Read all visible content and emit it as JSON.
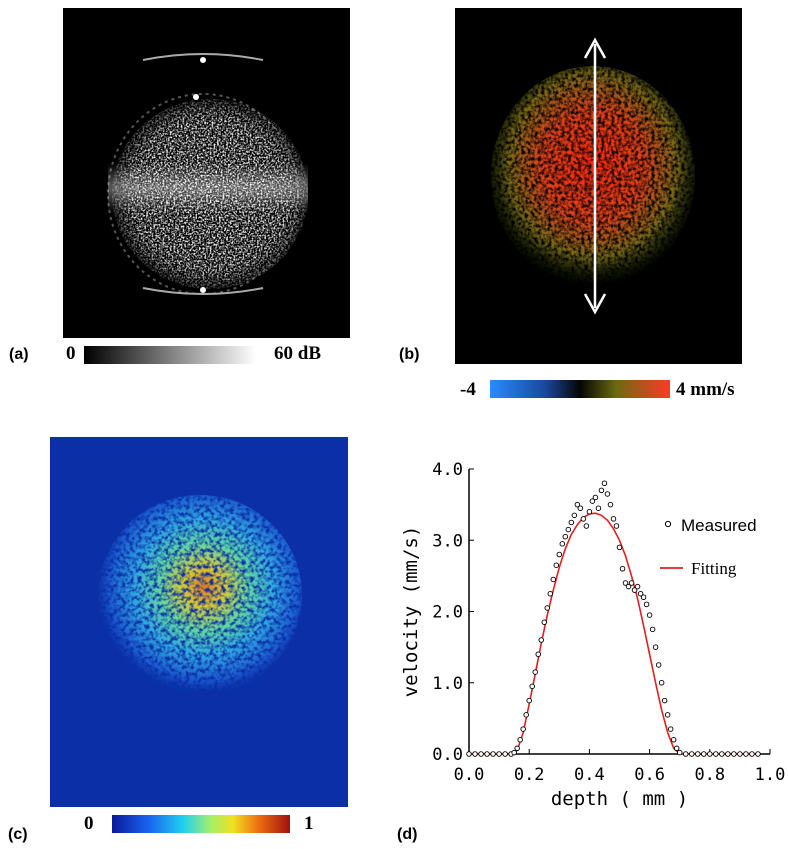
{
  "figure": {
    "panel_a": {
      "label": "(a)",
      "colorbar_min": "0",
      "colorbar_max": "60 dB"
    },
    "panel_b": {
      "label": "(b)",
      "colorbar_min": "-4",
      "colorbar_max": "4 mm/s"
    },
    "panel_c": {
      "label": "(c)",
      "colorbar_min": "0",
      "colorbar_max": "1"
    },
    "panel_d": {
      "label": "(d)"
    }
  },
  "chart_data": {
    "type": "scatter",
    "xlabel": "depth ( mm )",
    "ylabel": "velocity (mm/s)",
    "xlim": [
      0.0,
      1.0
    ],
    "ylim": [
      0.0,
      4.0
    ],
    "xticks": [
      "0.0",
      "0.2",
      "0.4",
      "0.6",
      "0.8",
      "1.0"
    ],
    "yticks": [
      "0.0",
      "1.0",
      "2.0",
      "3.0",
      "4.0"
    ],
    "legend_position": "right",
    "grid": false,
    "series": [
      {
        "name": "Measured",
        "marker": "open-circle",
        "color": "#000000",
        "x": [
          0.0,
          0.02,
          0.04,
          0.06,
          0.08,
          0.1,
          0.12,
          0.14,
          0.15,
          0.16,
          0.17,
          0.18,
          0.19,
          0.2,
          0.21,
          0.22,
          0.23,
          0.24,
          0.25,
          0.26,
          0.27,
          0.28,
          0.29,
          0.3,
          0.31,
          0.32,
          0.33,
          0.34,
          0.35,
          0.36,
          0.37,
          0.38,
          0.39,
          0.4,
          0.41,
          0.42,
          0.43,
          0.44,
          0.45,
          0.46,
          0.47,
          0.48,
          0.49,
          0.5,
          0.51,
          0.52,
          0.53,
          0.54,
          0.55,
          0.56,
          0.57,
          0.58,
          0.59,
          0.6,
          0.61,
          0.62,
          0.63,
          0.64,
          0.65,
          0.66,
          0.67,
          0.68,
          0.69,
          0.7,
          0.72,
          0.74,
          0.76,
          0.78,
          0.8,
          0.82,
          0.84,
          0.86,
          0.88,
          0.9,
          0.92,
          0.94,
          0.96
        ],
        "y": [
          0.0,
          0.0,
          0.0,
          0.0,
          0.0,
          0.0,
          0.0,
          0.0,
          0.02,
          0.08,
          0.2,
          0.35,
          0.55,
          0.75,
          0.95,
          1.15,
          1.4,
          1.6,
          1.85,
          2.05,
          2.25,
          2.45,
          2.65,
          2.8,
          2.95,
          3.05,
          3.15,
          3.25,
          3.35,
          3.5,
          3.45,
          3.3,
          3.2,
          3.4,
          3.55,
          3.6,
          3.45,
          3.7,
          3.8,
          3.65,
          3.5,
          3.3,
          3.2,
          2.9,
          2.6,
          2.4,
          2.35,
          2.4,
          2.3,
          2.35,
          2.25,
          2.2,
          2.1,
          1.95,
          1.75,
          1.5,
          1.25,
          1.0,
          0.75,
          0.55,
          0.35,
          0.2,
          0.08,
          0.02,
          0.0,
          0.0,
          0.0,
          0.0,
          0.0,
          0.0,
          0.0,
          0.0,
          0.0,
          0.0,
          0.0,
          0.0,
          0.0
        ]
      },
      {
        "name": "Fitting",
        "marker": "line",
        "color": "#e02020",
        "x": [
          0.0,
          0.1,
          0.14,
          0.16,
          0.18,
          0.2,
          0.22,
          0.24,
          0.26,
          0.28,
          0.3,
          0.32,
          0.34,
          0.36,
          0.38,
          0.4,
          0.42,
          0.44,
          0.46,
          0.48,
          0.5,
          0.52,
          0.54,
          0.56,
          0.58,
          0.6,
          0.62,
          0.64,
          0.66,
          0.68,
          0.7,
          0.72,
          0.8,
          0.96
        ],
        "y": [
          0.0,
          0.0,
          0.0,
          0.05,
          0.3,
          0.7,
          1.12,
          1.55,
          1.95,
          2.3,
          2.62,
          2.88,
          3.08,
          3.22,
          3.32,
          3.37,
          3.38,
          3.35,
          3.28,
          3.16,
          3.0,
          2.78,
          2.5,
          2.18,
          1.8,
          1.4,
          1.0,
          0.62,
          0.3,
          0.08,
          0.0,
          0.0,
          0.0,
          0.0
        ]
      }
    ]
  }
}
